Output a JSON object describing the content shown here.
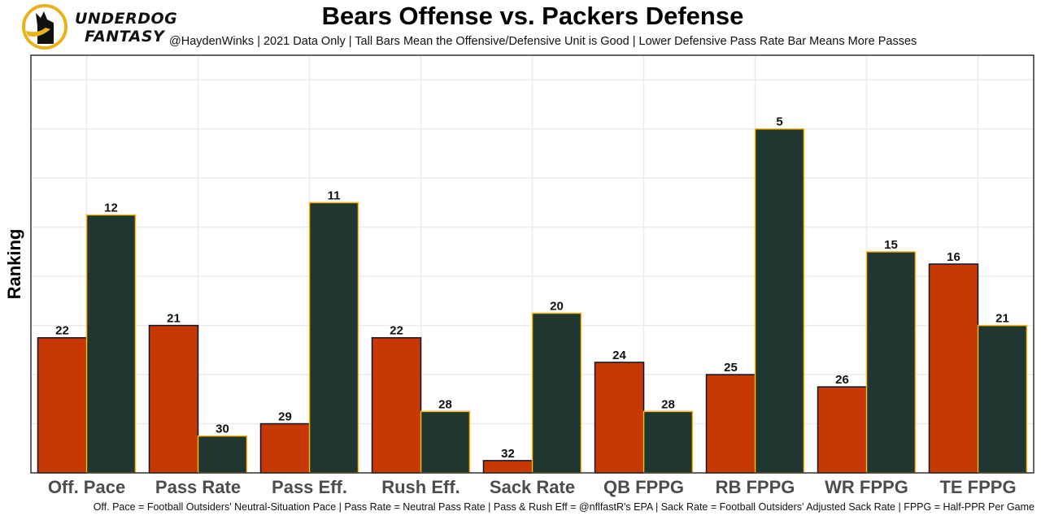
{
  "brand": {
    "line1": "UNDERDOG",
    "line2": "FANTASY",
    "logo_icon": "underdog-dog-logo-icon"
  },
  "colors": {
    "offense": "#c83803",
    "defense": "#203731",
    "offense_border": "#0b162a",
    "defense_border": "#ffb612",
    "grid": "#ebebeb",
    "frame": "#333333"
  },
  "chart_data": {
    "type": "bar",
    "title": "Bears Offense vs. Packers Defense",
    "subtitle": "@HaydenWinks | 2021 Data Only | Tall Bars Mean the Offensive/Defensive Unit is Good | Lower Defensive Pass Rate Bar Means More Passes",
    "caption": "Off. Pace = Football Outsiders' Neutral-Situation Pace | Pass Rate = Neutral Pass Rate | Pass & Rush Eff = @nflfastR's EPA | Sack Rate = Football Outsiders' Adjusted Sack Rate | FPPG = Half-PPR Per Game",
    "xlabel": "",
    "ylabel": "Ranking",
    "categories": [
      "Off. Pace",
      "Pass Rate",
      "Pass Eff.",
      "Rush Eff.",
      "Sack Rate",
      "QB FPPG",
      "RB FPPG",
      "WR FPPG",
      "TE FPPG"
    ],
    "series": [
      {
        "name": "Bears Offense",
        "values": [
          22,
          21,
          29,
          22,
          32,
          24,
          25,
          26,
          16
        ]
      },
      {
        "name": "Packers Defense",
        "values": [
          12,
          30,
          11,
          28,
          20,
          28,
          5,
          15,
          21
        ]
      }
    ],
    "bar_height_rule": "height = 33 - ranking (lower ranking number = taller bar)",
    "ylim": [
      0,
      34
    ],
    "y_ticks_shown": false,
    "grid": true,
    "legend": "none"
  }
}
